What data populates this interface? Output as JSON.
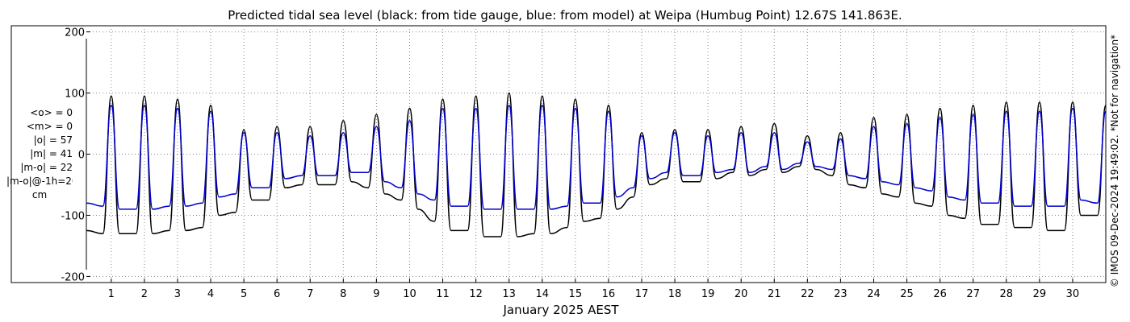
{
  "page": {
    "title": "Predicted tidal sea level (black: from tide gauge, blue: from model) at Weipa (Humbug Point) 12.67S 141.863E.",
    "credit": "© IMOS 09-Dec-2024 19:49:02. *Not for navigation*"
  },
  "stats": {
    "mean_obs": "<o> = 0",
    "mean_model": "<m> = 0",
    "abs_obs": "|o| = 57",
    "abs_model": "|m| = 41",
    "abs_diff": "|m-o| = 22",
    "abs_diff_lag": "|m-o|@-1h=20",
    "unit": "cm"
  },
  "colors": {
    "gauge": "#000000",
    "model": "#0000cc",
    "grid": "#888888"
  },
  "chart_data": {
    "type": "line",
    "title": "Predicted tidal sea level (black: from tide gauge, blue: from model) at Weipa (Humbug Point) 12.67S 141.863E.",
    "xlabel": "January 2025 AEST",
    "ylabel": "",
    "x_range_days": [
      0.25,
      31.0
    ],
    "ylim": [
      -210,
      210
    ],
    "yticks": [
      200,
      100,
      0,
      -100,
      -200
    ],
    "xticks": [
      1,
      2,
      3,
      4,
      5,
      6,
      7,
      8,
      9,
      10,
      11,
      12,
      13,
      14,
      15,
      16,
      17,
      18,
      19,
      20,
      21,
      22,
      23,
      24,
      25,
      26,
      27,
      28,
      29,
      30
    ],
    "grid": true,
    "series": [
      {
        "name": "from tide gauge",
        "color": "#000000",
        "x": [
          0.25,
          0.75,
          1.0,
          1.25,
          1.75,
          2.0,
          2.25,
          2.75,
          3.0,
          3.25,
          3.75,
          4.0,
          4.25,
          4.75,
          5.0,
          5.25,
          5.75,
          6.0,
          6.25,
          6.75,
          7.0,
          7.25,
          7.75,
          8.0,
          8.25,
          8.75,
          9.0,
          9.25,
          9.75,
          10.0,
          10.25,
          10.75,
          11.0,
          11.25,
          11.75,
          12.0,
          12.25,
          12.75,
          13.0,
          13.25,
          13.75,
          14.0,
          14.25,
          14.75,
          15.0,
          15.25,
          15.75,
          16.0,
          16.25,
          16.75,
          17.0,
          17.25,
          17.75,
          18.0,
          18.25,
          18.75,
          19.0,
          19.25,
          19.75,
          20.0,
          20.25,
          20.75,
          21.0,
          21.25,
          21.75,
          22.0,
          22.25,
          22.75,
          23.0,
          23.25,
          23.75,
          24.0,
          24.25,
          24.75,
          25.0,
          25.25,
          25.75,
          26.0,
          26.25,
          26.75,
          27.0,
          27.25,
          27.75,
          28.0,
          28.25,
          28.75,
          29.0,
          29.25,
          29.75,
          30.0,
          30.25,
          30.75,
          31.0
        ],
        "values": [
          -125,
          -130,
          95,
          -130,
          -130,
          95,
          -130,
          -125,
          90,
          -125,
          -120,
          80,
          -100,
          -95,
          40,
          -75,
          -75,
          45,
          -55,
          -50,
          45,
          -50,
          -50,
          55,
          -45,
          -55,
          65,
          -65,
          -75,
          75,
          -90,
          -110,
          90,
          -125,
          -125,
          95,
          -135,
          -135,
          100,
          -135,
          -130,
          95,
          -130,
          -120,
          90,
          -110,
          -105,
          80,
          -90,
          -70,
          35,
          -50,
          -40,
          40,
          -45,
          -45,
          40,
          -40,
          -30,
          45,
          -35,
          -25,
          50,
          -30,
          -20,
          30,
          -25,
          -35,
          35,
          -50,
          -55,
          60,
          -65,
          -70,
          65,
          -80,
          -85,
          75,
          -100,
          -105,
          80,
          -115,
          -115,
          85,
          -120,
          -120,
          85,
          -125,
          -125,
          85,
          -100,
          -100,
          80
        ]
      },
      {
        "name": "from model",
        "color": "#0000cc",
        "x": [
          0.25,
          0.75,
          1.0,
          1.25,
          1.75,
          2.0,
          2.25,
          2.75,
          3.0,
          3.25,
          3.75,
          4.0,
          4.25,
          4.75,
          5.0,
          5.25,
          5.75,
          6.0,
          6.25,
          6.75,
          7.0,
          7.25,
          7.75,
          8.0,
          8.25,
          8.75,
          9.0,
          9.25,
          9.75,
          10.0,
          10.25,
          10.75,
          11.0,
          11.25,
          11.75,
          12.0,
          12.25,
          12.75,
          13.0,
          13.25,
          13.75,
          14.0,
          14.25,
          14.75,
          15.0,
          15.25,
          15.75,
          16.0,
          16.25,
          16.75,
          17.0,
          17.25,
          17.75,
          18.0,
          18.25,
          18.75,
          19.0,
          19.25,
          19.75,
          20.0,
          20.25,
          20.75,
          21.0,
          21.25,
          21.75,
          22.0,
          22.25,
          22.75,
          23.0,
          23.25,
          23.75,
          24.0,
          24.25,
          24.75,
          25.0,
          25.25,
          25.75,
          26.0,
          26.25,
          26.75,
          27.0,
          27.25,
          27.75,
          28.0,
          28.25,
          28.75,
          29.0,
          29.25,
          29.75,
          30.0,
          30.25,
          30.75,
          31.0
        ],
        "values": [
          -80,
          -85,
          80,
          -90,
          -90,
          80,
          -90,
          -85,
          75,
          -85,
          -80,
          70,
          -70,
          -65,
          35,
          -55,
          -55,
          35,
          -40,
          -35,
          30,
          -35,
          -35,
          35,
          -30,
          -30,
          45,
          -45,
          -55,
          55,
          -65,
          -75,
          75,
          -85,
          -85,
          75,
          -90,
          -90,
          80,
          -90,
          -90,
          80,
          -90,
          -85,
          75,
          -80,
          -80,
          70,
          -70,
          -55,
          30,
          -40,
          -30,
          35,
          -35,
          -35,
          30,
          -30,
          -25,
          35,
          -30,
          -20,
          35,
          -25,
          -15,
          20,
          -20,
          -25,
          25,
          -35,
          -40,
          45,
          -45,
          -50,
          50,
          -55,
          -60,
          60,
          -70,
          -75,
          65,
          -80,
          -80,
          70,
          -85,
          -85,
          70,
          -85,
          -85,
          75,
          -75,
          -80,
          70
        ]
      }
    ]
  }
}
